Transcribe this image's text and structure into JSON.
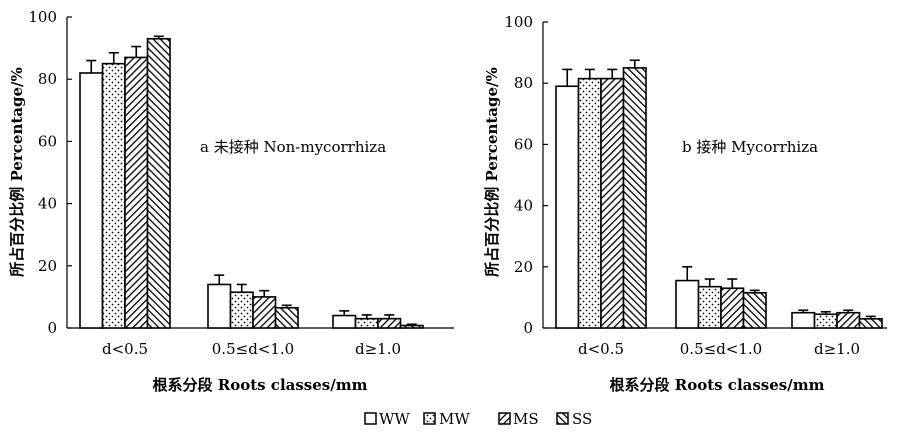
{
  "chart_data": [
    {
      "type": "bar",
      "title": "a 未接种 Non-mycorrhiza",
      "xlabel": "根系分段 Roots classes/mm",
      "ylabel": "所占百分比例 Percentage/%",
      "ylim": [
        0,
        100
      ],
      "yticks": [
        "0",
        "20",
        "40",
        "60",
        "80",
        "100"
      ],
      "categories": [
        "d<0.5",
        "0.5≤d<1.0",
        "d≥1.0"
      ],
      "series": [
        {
          "name": "WW",
          "values": [
            82,
            14,
            4
          ],
          "errors": [
            4,
            3,
            1.5
          ]
        },
        {
          "name": "MW",
          "values": [
            85,
            11.5,
            3
          ],
          "errors": [
            3.5,
            2.5,
            1.2
          ]
        },
        {
          "name": "MS",
          "values": [
            87,
            10,
            3
          ],
          "errors": [
            3.5,
            2,
            1.2
          ]
        },
        {
          "name": "SS",
          "values": [
            93,
            6.5,
            0.8
          ],
          "errors": [
            0.8,
            0.8,
            0.4
          ]
        }
      ],
      "grid": false,
      "legend": "bottom"
    },
    {
      "type": "bar",
      "title": "b 接种 Mycorrhiza",
      "xlabel": "根系分段 Roots classes/mm",
      "ylabel": "所占百分比例 Percentage/%",
      "ylim": [
        0,
        100
      ],
      "yticks": [
        "0",
        "20",
        "40",
        "60",
        "80",
        "100"
      ],
      "categories": [
        "d<0.5",
        "0.5≤d<1.0",
        "d≥1.0"
      ],
      "series": [
        {
          "name": "WW",
          "values": [
            79,
            15.5,
            5
          ],
          "errors": [
            5.5,
            4.5,
            0.8
          ]
        },
        {
          "name": "MW",
          "values": [
            81.5,
            13.5,
            4.5
          ],
          "errors": [
            3,
            2.5,
            0.8
          ]
        },
        {
          "name": "MS",
          "values": [
            81.5,
            13,
            5
          ],
          "errors": [
            3,
            3,
            0.8
          ]
        },
        {
          "name": "SS",
          "values": [
            85,
            11.5,
            3
          ],
          "errors": [
            2.5,
            0.8,
            0.8
          ]
        }
      ],
      "grid": false,
      "legend": "bottom"
    }
  ],
  "legend": {
    "items": [
      {
        "label": "WW",
        "pattern": "blank"
      },
      {
        "label": "MW",
        "pattern": "dots"
      },
      {
        "label": "MS",
        "pattern": "back-hatch"
      },
      {
        "label": "SS",
        "pattern": "forward-hatch"
      }
    ]
  }
}
